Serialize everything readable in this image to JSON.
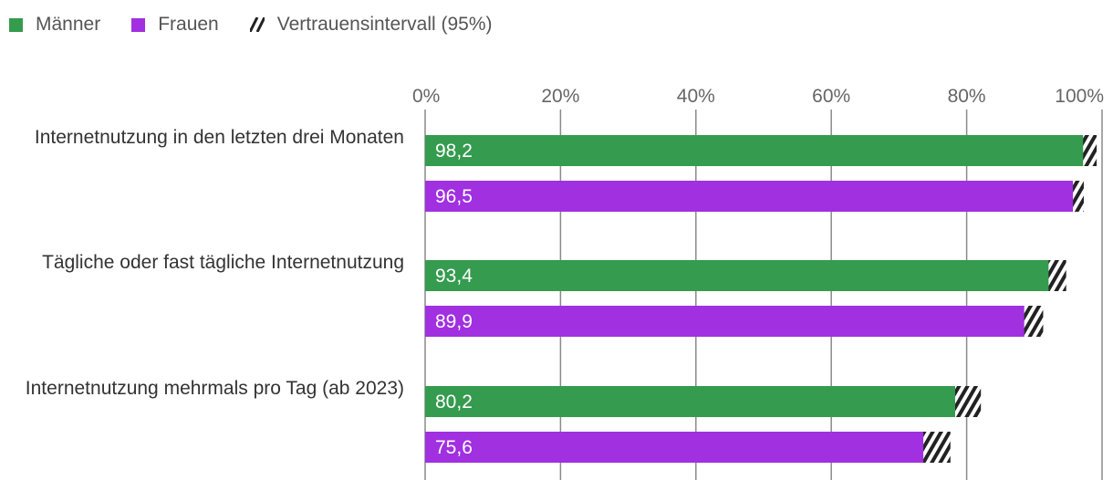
{
  "chart_data": {
    "type": "bar",
    "orientation": "horizontal",
    "title": "",
    "xlabel": "",
    "ylabel": "",
    "xlim": [
      0,
      100
    ],
    "tick_labels": [
      "0%",
      "20%",
      "40%",
      "60%",
      "80%",
      "100%"
    ],
    "tick_values": [
      0,
      20,
      40,
      60,
      80,
      100
    ],
    "categories": [
      "Internetnutzung in den letzten drei Monaten",
      "Tägliche oder fast tägliche Internetnutzung",
      "Internetnutzung mehrmals pro Tag (ab 2023)"
    ],
    "series": [
      {
        "name": "Männer",
        "color": "#359b4e",
        "values": [
          98.2,
          93.4,
          80.2
        ],
        "value_labels": [
          "98,2",
          "93,4",
          "80,2"
        ],
        "ci_upper": [
          99.2,
          94.7,
          82.1
        ]
      },
      {
        "name": "Frauen",
        "color": "#a030e0",
        "values": [
          96.5,
          89.9,
          75.6
        ],
        "value_labels": [
          "96,5",
          "89,9",
          "75,6"
        ],
        "ci_upper": [
          97.3,
          91.3,
          77.6
        ]
      }
    ],
    "legend": [
      {
        "name": "Männer",
        "color": "#359b4e"
      },
      {
        "name": "Frauen",
        "color": "#a030e0"
      },
      {
        "name": "Vertrauensintervall (95%)",
        "icon": "hatch-icon"
      }
    ],
    "grid": true,
    "legend_position": "top-left"
  }
}
